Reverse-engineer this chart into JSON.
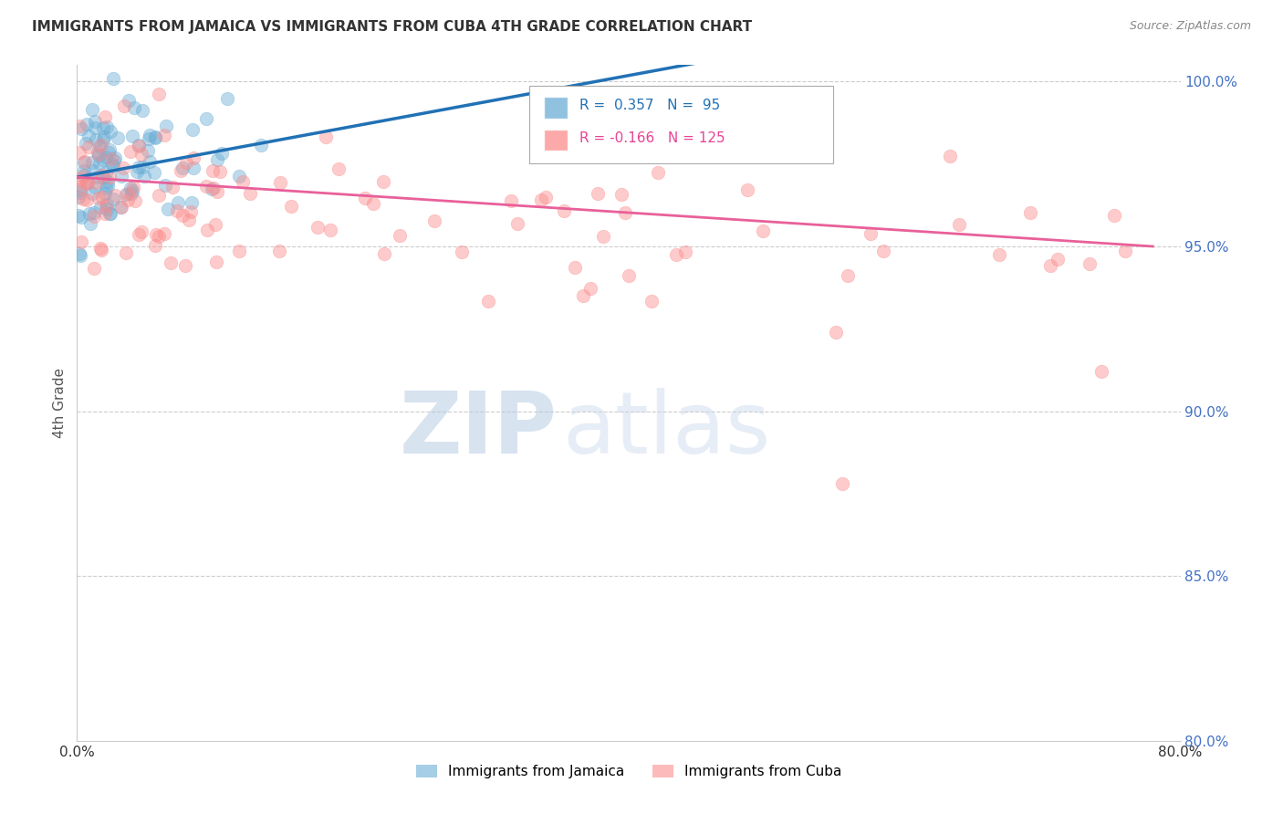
{
  "title": "IMMIGRANTS FROM JAMAICA VS IMMIGRANTS FROM CUBA 4TH GRADE CORRELATION CHART",
  "source": "Source: ZipAtlas.com",
  "ylabel": "4th Grade",
  "xlim": [
    0.0,
    0.8
  ],
  "ylim": [
    0.8,
    1.005
  ],
  "y_ticks_right": [
    0.8,
    0.85,
    0.9,
    0.95,
    1.0
  ],
  "y_tick_labels_right": [
    "80.0%",
    "85.0%",
    "90.0%",
    "95.0%",
    "100.0%"
  ],
  "jamaica_color": "#6baed6",
  "cuba_color": "#fc8d8d",
  "jamaica_R": 0.357,
  "jamaica_N": 95,
  "cuba_R": -0.166,
  "cuba_N": 125,
  "jamaica_line_color": "#2171b5",
  "cuba_line_color": "#e8609a",
  "watermark_zip": "ZIP",
  "watermark_atlas": "atlas",
  "background_color": "#ffffff"
}
